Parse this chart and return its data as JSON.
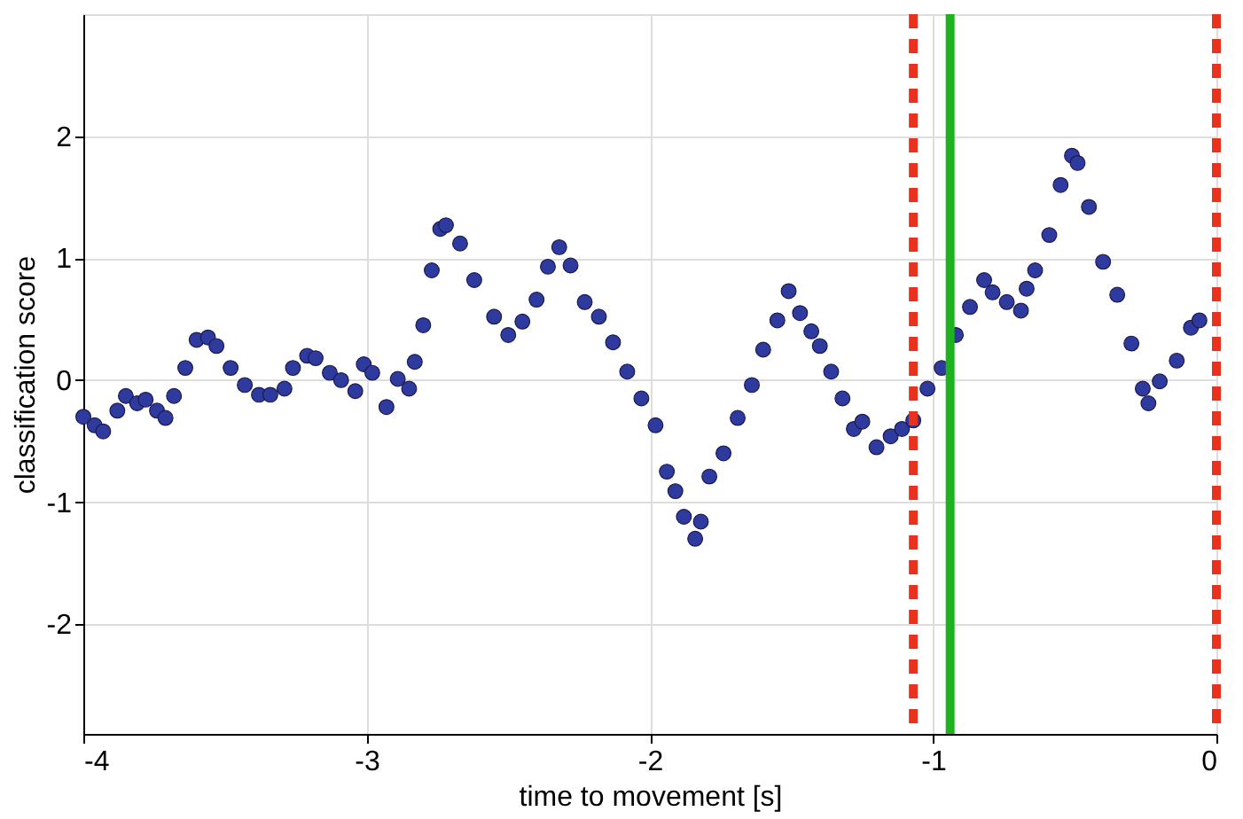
{
  "chart_data": {
    "type": "scatter",
    "xlabel": "time to movement [s]",
    "ylabel": "classification score",
    "xlim": [
      -4,
      0
    ],
    "ylim": [
      -2.9,
      3
    ],
    "xticks": [
      -4,
      -3,
      -2,
      -1,
      0
    ],
    "yticks": [
      -2,
      -1,
      0,
      1,
      2
    ],
    "grid": true,
    "marker": "circle",
    "x": [
      -4.0,
      -3.96,
      -3.93,
      -3.88,
      -3.85,
      -3.81,
      -3.78,
      -3.74,
      -3.71,
      -3.68,
      -3.64,
      -3.6,
      -3.56,
      -3.53,
      -3.48,
      -3.43,
      -3.38,
      -3.34,
      -3.29,
      -3.26,
      -3.21,
      -3.18,
      -3.13,
      -3.09,
      -3.04,
      -3.01,
      -2.98,
      -2.93,
      -2.89,
      -2.85,
      -2.83,
      -2.8,
      -2.77,
      -2.74,
      -2.72,
      -2.67,
      -2.62,
      -2.55,
      -2.5,
      -2.45,
      -2.4,
      -2.36,
      -2.32,
      -2.28,
      -2.23,
      -2.18,
      -2.13,
      -2.08,
      -2.03,
      -1.98,
      -1.94,
      -1.91,
      -1.88,
      -1.84,
      -1.82,
      -1.79,
      -1.74,
      -1.69,
      -1.64,
      -1.6,
      -1.55,
      -1.51,
      -1.47,
      -1.43,
      -1.4,
      -1.36,
      -1.32,
      -1.28,
      -1.25,
      -1.2,
      -1.15,
      -1.11,
      -1.07,
      -1.02,
      -0.97,
      -0.92,
      -0.87,
      -0.82,
      -0.79,
      -0.74,
      -0.69,
      -0.67,
      -0.64,
      -0.59,
      -0.55,
      -0.51,
      -0.49,
      -0.45,
      -0.4,
      -0.35,
      -0.3,
      -0.26,
      -0.24,
      -0.2,
      -0.14,
      -0.09,
      -0.06
    ],
    "series": [
      {
        "color": "#2e3a9e",
        "values": [
          -0.3,
          -0.37,
          -0.42,
          -0.25,
          -0.13,
          -0.19,
          -0.16,
          -0.25,
          -0.31,
          -0.13,
          0.1,
          0.33,
          0.35,
          0.28,
          0.1,
          -0.04,
          -0.12,
          -0.12,
          -0.07,
          0.1,
          0.2,
          0.18,
          0.06,
          0,
          -0.09,
          0.13,
          0.06,
          -0.22,
          0.01,
          -0.07,
          0.15,
          0.45,
          0.9,
          1.24,
          1.27,
          1.12,
          0.82,
          0.52,
          0.37,
          0.48,
          0.66,
          0.93,
          1.09,
          0.94,
          0.64,
          0.52,
          0.31,
          0.07,
          -0.15,
          -0.37,
          -0.75,
          -0.91,
          -1.12,
          -1.3,
          -1.16,
          -0.79,
          -0.6,
          -0.31,
          -0.04,
          0.25,
          0.49,
          0.73,
          0.55,
          0.4,
          0.28,
          0.07,
          -0.15,
          -0.4,
          -0.34,
          -0.55,
          -0.46,
          -0.4,
          -0.33,
          -0.07,
          0.1,
          0.37,
          0.6,
          0.82,
          0.72,
          0.64,
          0.57,
          0.75,
          0.9,
          1.19,
          1.6,
          1.84,
          1.78,
          1.42,
          0.97,
          0.7,
          0.3,
          -0.07,
          -0.19,
          -0.01,
          0.16,
          0.43,
          0.49
        ]
      }
    ],
    "ref_lines": [
      {
        "axis": "x",
        "value": -1.07,
        "color": "#e8321e",
        "line_style": "dashed"
      },
      {
        "axis": "x",
        "value": -0.94,
        "color": "#1fb21f",
        "line_style": "solid"
      },
      {
        "axis": "x",
        "value": 0,
        "color": "#e8321e",
        "line_style": "dashed"
      }
    ]
  }
}
